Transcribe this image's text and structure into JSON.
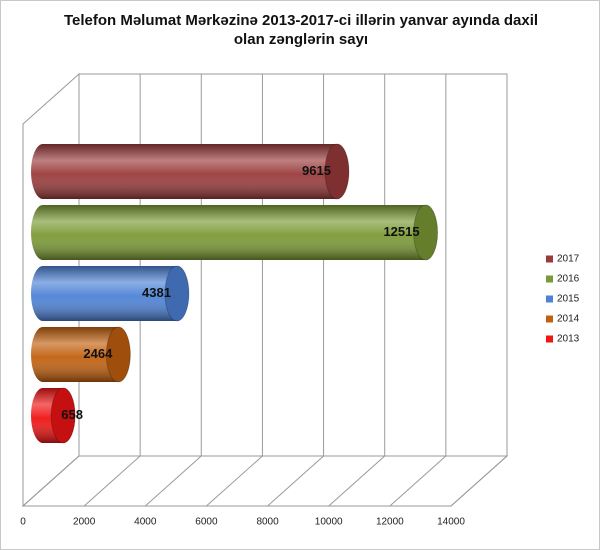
{
  "chart_data": {
    "type": "bar3d_horizontal",
    "title": "Telefon Məlumat Mərkəzinə 2013-2017-ci illərin yanvar ayında daxil olan zənglərin sayı",
    "series": [
      {
        "name": "2017",
        "color": "#9a3b3b",
        "values": [
          9615
        ]
      },
      {
        "name": "2016",
        "color": "#7b9a35",
        "values": [
          12515
        ]
      },
      {
        "name": "2015",
        "color": "#4d82d6",
        "values": [
          4381
        ]
      },
      {
        "name": "2014",
        "color": "#c2600f",
        "values": [
          2464
        ]
      },
      {
        "name": "2013",
        "color": "#f01414",
        "values": [
          658
        ]
      }
    ],
    "xlim": [
      0,
      14000
    ],
    "xticks": [
      0,
      2000,
      4000,
      6000,
      8000,
      10000,
      12000,
      14000
    ],
    "grid": true,
    "legend": "right"
  }
}
